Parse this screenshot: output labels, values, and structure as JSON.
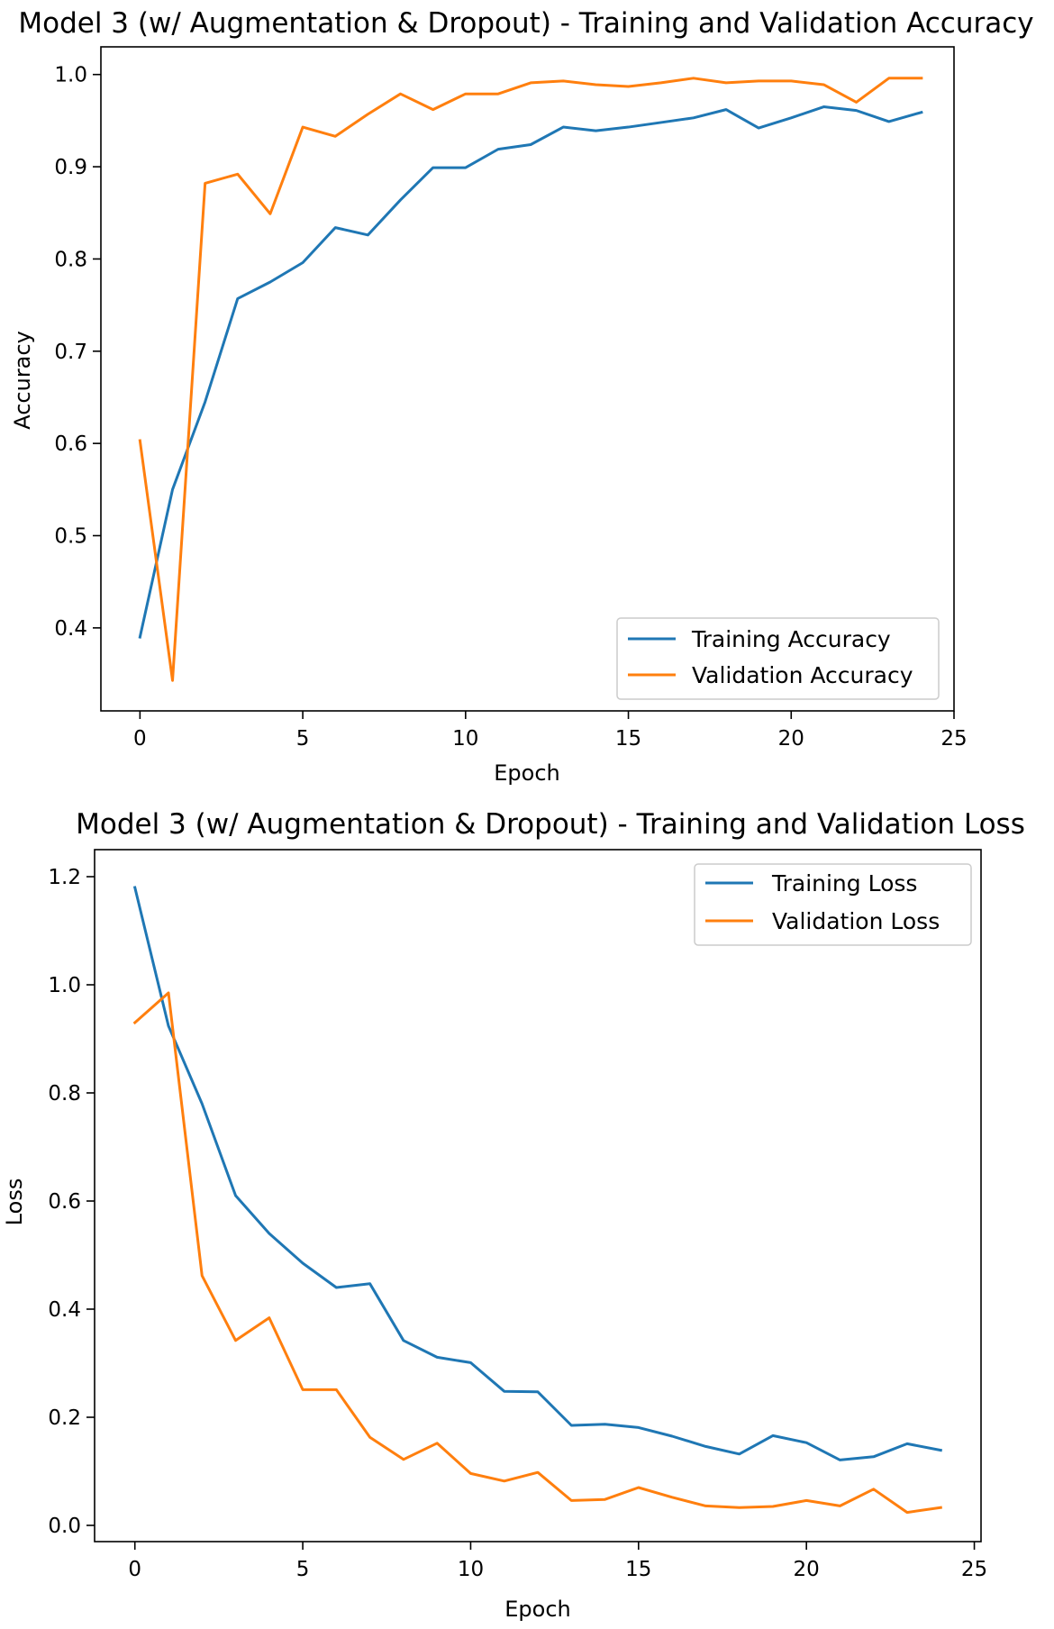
{
  "colors": {
    "training": "#1f77b4",
    "validation": "#ff7f0e",
    "axis": "#000000",
    "legend_border": "#cccccc",
    "background": "#ffffff"
  },
  "chart_data": [
    {
      "type": "line",
      "title": "Model 3 (w/ Augmentation & Dropout) - Training and Validation Accuracy",
      "xlabel": "Epoch",
      "ylabel": "Accuracy",
      "xlim": [
        -1.2,
        25
      ],
      "ylim": [
        0.31,
        1.03
      ],
      "xticks": [
        0,
        5,
        10,
        15,
        20,
        25
      ],
      "yticks": [
        0.4,
        0.5,
        0.6,
        0.7,
        0.8,
        0.9,
        1.0
      ],
      "ytick_labels": [
        "0.4",
        "0.5",
        "0.6",
        "0.7",
        "0.8",
        "0.9",
        "1.0"
      ],
      "grid": false,
      "legend_position": "lower-right",
      "x": [
        0,
        1,
        2,
        3,
        4,
        5,
        6,
        7,
        8,
        9,
        10,
        11,
        12,
        13,
        14,
        15,
        16,
        17,
        18,
        19,
        20,
        21,
        22,
        23,
        24
      ],
      "series": [
        {
          "name": "Training Accuracy",
          "color_key": "training",
          "values": [
            0.39,
            0.55,
            0.645,
            0.757,
            0.775,
            0.796,
            0.834,
            0.826,
            0.864,
            0.899,
            0.899,
            0.919,
            0.924,
            0.943,
            0.939,
            0.943,
            0.948,
            0.953,
            0.962,
            0.942,
            0.953,
            0.965,
            0.961,
            0.949,
            0.959
          ]
        },
        {
          "name": "Validation Accuracy",
          "color_key": "validation",
          "values": [
            0.603,
            0.343,
            0.882,
            0.892,
            0.849,
            0.943,
            0.933,
            0.957,
            0.979,
            0.962,
            0.979,
            0.979,
            0.991,
            0.993,
            0.989,
            0.987,
            0.991,
            0.996,
            0.991,
            0.993,
            0.993,
            0.989,
            0.97,
            0.996,
            0.996
          ]
        }
      ]
    },
    {
      "type": "line",
      "title": "Model 3 (w/ Augmentation & Dropout) - Training and Validation Loss",
      "xlabel": "Epoch",
      "ylabel": "Loss",
      "xlim": [
        -1.2,
        25.2
      ],
      "ylim": [
        -0.03,
        1.25
      ],
      "xticks": [
        0,
        5,
        10,
        15,
        20,
        25
      ],
      "yticks": [
        0.0,
        0.2,
        0.4,
        0.6,
        0.8,
        1.0,
        1.2
      ],
      "ytick_labels": [
        "0.0",
        "0.2",
        "0.4",
        "0.6",
        "0.8",
        "1.0",
        "1.2"
      ],
      "grid": false,
      "legend_position": "upper-right",
      "x": [
        0,
        1,
        2,
        3,
        4,
        5,
        6,
        7,
        8,
        9,
        10,
        11,
        12,
        13,
        14,
        15,
        16,
        17,
        18,
        19,
        20,
        21,
        22,
        23,
        24
      ],
      "series": [
        {
          "name": "Training Loss",
          "color_key": "training",
          "values": [
            1.18,
            0.924,
            0.78,
            0.61,
            0.54,
            0.485,
            0.44,
            0.447,
            0.342,
            0.311,
            0.301,
            0.248,
            0.247,
            0.185,
            0.187,
            0.181,
            0.165,
            0.146,
            0.132,
            0.166,
            0.153,
            0.121,
            0.127,
            0.151,
            0.139
          ]
        },
        {
          "name": "Validation Loss",
          "color_key": "validation",
          "values": [
            0.93,
            0.985,
            0.462,
            0.342,
            0.384,
            0.251,
            0.251,
            0.163,
            0.122,
            0.152,
            0.096,
            0.082,
            0.098,
            0.046,
            0.048,
            0.07,
            0.052,
            0.036,
            0.033,
            0.035,
            0.046,
            0.036,
            0.067,
            0.024,
            0.033
          ]
        }
      ]
    }
  ]
}
